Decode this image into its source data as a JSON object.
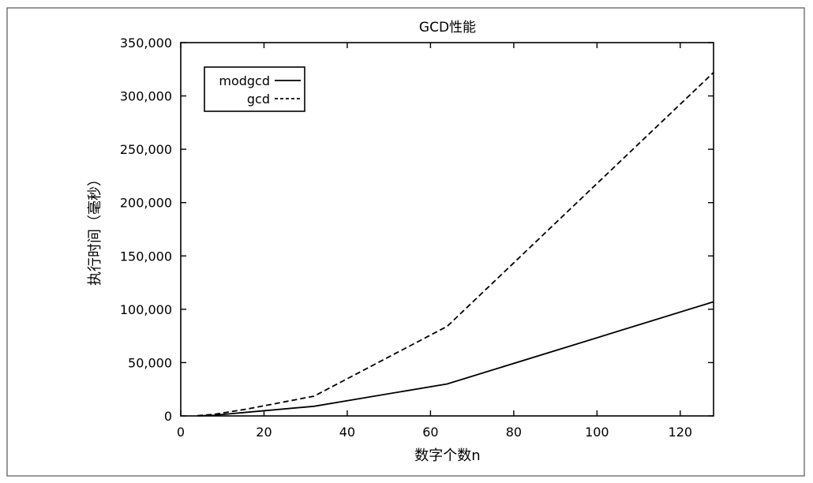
{
  "chart_data": {
    "type": "line",
    "title": "GCD性能",
    "xlabel": "数字个数n",
    "ylabel": "执行时间（毫秒）",
    "xlim": [
      0,
      128
    ],
    "ylim": [
      0,
      350000
    ],
    "x_ticks": [
      0,
      20,
      40,
      60,
      80,
      100,
      120
    ],
    "x_tick_labels": [
      "0",
      "20",
      "40",
      "60",
      "80",
      "100",
      "120"
    ],
    "y_ticks": [
      0,
      50000,
      100000,
      150000,
      200000,
      250000,
      300000,
      350000
    ],
    "y_tick_labels": [
      "0",
      "50,000",
      "100,000",
      "150,000",
      "200,000",
      "250,000",
      "300,000",
      "350,000"
    ],
    "legend_position": "top-left",
    "series": [
      {
        "name": "modgcd",
        "style": "solid",
        "x": [
          4,
          8,
          16,
          32,
          64,
          128
        ],
        "y": [
          100,
          700,
          3500,
          9000,
          30000,
          107000
        ]
      },
      {
        "name": "gcd",
        "style": "dashed",
        "x": [
          4,
          8,
          16,
          32,
          64,
          128
        ],
        "y": [
          200,
          1500,
          6500,
          18500,
          84000,
          322000
        ]
      }
    ]
  }
}
